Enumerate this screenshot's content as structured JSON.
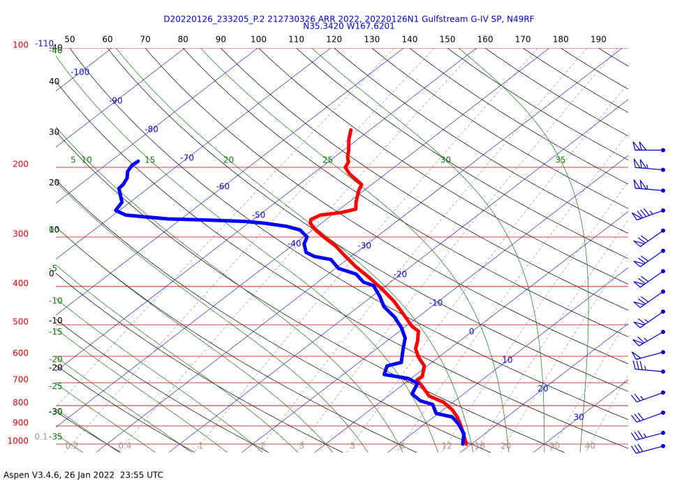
{
  "chart_data": {
    "type": "skew-t",
    "title": "D20220126_233205_P.2 212730326 ARR 2022, 20220126N1 Gulfstream G-IV SP, N49RF",
    "subtitle": "N35.3420 W167.6201",
    "footer": "Aspen V3.4.6, 26 Jan 2022  23:55 UTC",
    "log_y": true,
    "ylim": [
      100,
      1050
    ],
    "yticks": [
      100,
      200,
      300,
      400,
      500,
      600,
      700,
      800,
      900,
      1000
    ],
    "xlim": [
      -35.5,
      43
    ],
    "xticks": [
      -110,
      -100,
      -90,
      -80,
      -70,
      -60,
      -50,
      -40,
      -30,
      -20,
      -10,
      0,
      10,
      20,
      30
    ],
    "dry_adiabats": {
      "top": [
        50,
        60,
        70,
        80,
        90,
        100,
        110,
        120,
        130,
        140,
        150,
        160,
        170,
        180,
        190
      ],
      "left": [
        40,
        30,
        20,
        10,
        0,
        -10,
        -20,
        -30,
        -40
      ]
    },
    "moist_adiabats": {
      "top": [
        5,
        10,
        15,
        20,
        25,
        30,
        35
      ],
      "left": [
        0,
        -5,
        -10,
        -15,
        -20,
        -25,
        -30,
        -35,
        -40
      ]
    },
    "mixing_ratio": [
      0.1,
      0.2,
      0.4,
      1,
      2,
      3,
      5,
      8,
      12,
      16,
      20,
      30,
      40
    ],
    "series": [
      {
        "color": "#ff0000",
        "pressure": [
          161,
          170,
          181,
          188,
          194,
          200,
          208,
          215,
          221,
          230,
          245,
          255,
          260,
          264,
          271,
          277,
          288,
          302,
          316,
          335,
          356,
          380,
          407,
          436,
          469,
          504,
          519,
          551,
          574,
          603,
          635,
          675,
          689,
          717,
          756,
          784,
          820,
          854,
          897,
          953,
          1000
        ],
        "values": [
          -52.6,
          -51.2,
          -49.3,
          -48.3,
          -47.2,
          -46.7,
          -44.9,
          -43.0,
          -41.4,
          -40.6,
          -39.0,
          -37.8,
          -39.1,
          -41.6,
          -42.1,
          -41.5,
          -39.6,
          -36.8,
          -34.0,
          -30.9,
          -27.6,
          -23.7,
          -19.8,
          -16.1,
          -12.6,
          -9.2,
          -7.4,
          -5.7,
          -4.7,
          -2.8,
          -0.4,
          1.2,
          1.1,
          3.1,
          5.6,
          8.7,
          11.3,
          13.2,
          15.2,
          17.5,
          19.3
        ]
      },
      {
        "color": "#0000ff",
        "pressure": [
          193,
          198,
          205,
          213,
          221,
          226,
          235,
          245,
          257,
          264,
          270,
          272,
          274,
          277,
          282,
          288,
          300,
          312,
          328,
          336,
          342,
          360,
          372,
          390,
          398,
          424,
          450,
          478,
          508,
          540,
          574,
          622,
          635,
          667,
          683,
          703,
          747,
          778,
          794,
          837,
          854,
          889,
          941,
          1000
        ],
        "values": [
          -76.2,
          -76.3,
          -75.8,
          -74.7,
          -74.1,
          -74.0,
          -72.6,
          -71.1,
          -70.5,
          -68.3,
          -61.9,
          -55.9,
          -50.8,
          -47.7,
          -44.2,
          -41.7,
          -39.5,
          -38.7,
          -36.9,
          -35.0,
          -32.2,
          -29.6,
          -26.2,
          -23.7,
          -21.7,
          -18.9,
          -16.5,
          -13.2,
          -10.4,
          -8.0,
          -6.4,
          -4.2,
          -5.5,
          -4.4,
          -0.4,
          1.8,
          2.9,
          5.3,
          7.6,
          9.7,
          12.5,
          14.6,
          17.1,
          18.8
        ]
      }
    ],
    "winds": {
      "pressure": [
        181,
        203,
        229,
        257,
        289,
        325,
        366,
        412,
        463,
        521,
        586,
        656,
        741,
        833,
        937,
        1012
      ],
      "speed": [
        100,
        105,
        105,
        85,
        70,
        70,
        70,
        70,
        65,
        65,
        50,
        35,
        25,
        30,
        35,
        30
      ],
      "direction": [
        270,
        275,
        275,
        250,
        235,
        235,
        235,
        235,
        235,
        240,
        255,
        275,
        250,
        250,
        255,
        255
      ]
    }
  }
}
